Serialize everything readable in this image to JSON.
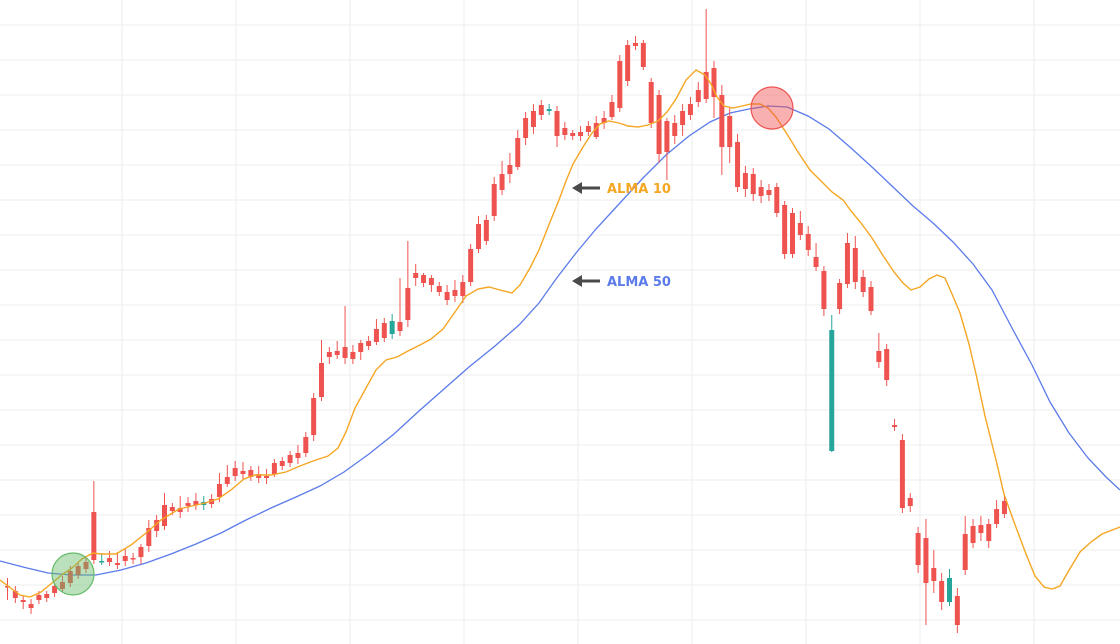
{
  "colors": {
    "up": "#26a69a",
    "down": "#ef5350",
    "alma10": "#f5a623",
    "alma50": "#5b7bea",
    "grid": "#eeeeee",
    "arrow": "#4a4a4a",
    "buy_marker": "#66bb6a",
    "sell_marker": "#ef5350"
  },
  "chart_data": {
    "type": "candlestick",
    "grid": true,
    "ylim": [
      0,
      644
    ],
    "candles": [
      [
        586,
        586,
        578,
        600
      ],
      [
        591,
        598,
        586,
        603
      ],
      [
        600,
        602,
        596,
        609
      ],
      [
        604,
        608,
        599,
        614
      ],
      [
        595,
        600,
        591,
        604
      ],
      [
        594,
        598,
        591,
        602
      ],
      [
        586,
        593,
        583,
        597
      ],
      [
        582,
        589,
        576,
        592
      ],
      [
        571,
        583,
        566,
        587
      ],
      [
        566,
        575,
        563,
        579
      ],
      [
        562,
        569,
        556,
        573
      ],
      [
        512,
        560,
        481,
        564
      ],
      [
        562,
        561,
        553,
        565
      ],
      [
        558,
        562,
        551,
        566
      ],
      [
        563,
        565,
        552,
        569
      ],
      [
        556,
        561,
        548,
        566
      ],
      [
        558,
        559,
        553,
        564
      ],
      [
        547,
        557,
        544,
        564
      ],
      [
        528,
        546,
        520,
        552
      ],
      [
        520,
        531,
        515,
        537
      ],
      [
        505,
        526,
        493,
        530
      ],
      [
        507,
        511,
        503,
        515
      ],
      [
        508,
        512,
        496,
        518
      ],
      [
        503,
        506,
        497,
        512
      ],
      [
        501,
        505,
        493,
        510
      ],
      [
        505,
        502,
        496,
        510
      ],
      [
        499,
        504,
        494,
        508
      ],
      [
        484,
        497,
        473,
        502
      ],
      [
        477,
        484,
        465,
        487
      ],
      [
        468,
        476,
        461,
        481
      ],
      [
        471,
        474,
        462,
        480
      ],
      [
        470,
        477,
        466,
        481
      ],
      [
        474,
        478,
        466,
        483
      ],
      [
        476,
        478,
        469,
        484
      ],
      [
        463,
        474,
        459,
        477
      ],
      [
        461,
        466,
        457,
        470
      ],
      [
        455,
        463,
        451,
        467
      ],
      [
        453,
        458,
        445,
        464
      ],
      [
        437,
        453,
        432,
        457
      ],
      [
        398,
        435,
        393,
        441
      ],
      [
        363,
        397,
        340,
        401
      ],
      [
        352,
        357,
        347,
        364
      ],
      [
        351,
        355,
        341,
        359
      ],
      [
        347,
        358,
        306,
        364
      ],
      [
        352,
        359,
        345,
        364
      ],
      [
        343,
        352,
        340,
        360
      ],
      [
        341,
        346,
        336,
        350
      ],
      [
        329,
        342,
        319,
        345
      ],
      [
        323,
        338,
        318,
        342
      ],
      [
        334,
        321,
        314,
        339
      ],
      [
        322,
        331,
        278,
        336
      ],
      [
        288,
        320,
        241,
        327
      ],
      [
        273,
        278,
        264,
        286
      ],
      [
        275,
        283,
        273,
        287
      ],
      [
        278,
        285,
        275,
        292
      ],
      [
        286,
        292,
        282,
        296
      ],
      [
        292,
        300,
        285,
        305
      ],
      [
        290,
        296,
        280,
        302
      ],
      [
        282,
        296,
        275,
        303
      ],
      [
        249,
        282,
        244,
        286
      ],
      [
        224,
        249,
        216,
        253
      ],
      [
        220,
        241,
        215,
        245
      ],
      [
        184,
        216,
        177,
        221
      ],
      [
        174,
        190,
        161,
        195
      ],
      [
        165,
        174,
        153,
        183
      ],
      [
        138,
        167,
        130,
        170
      ],
      [
        118,
        138,
        112,
        145
      ],
      [
        111,
        127,
        104,
        134
      ],
      [
        105,
        115,
        100,
        120
      ],
      [
        111,
        109,
        104,
        115
      ],
      [
        111,
        136,
        106,
        147
      ],
      [
        128,
        135,
        122,
        140
      ],
      [
        133,
        136,
        130,
        140
      ],
      [
        132,
        136,
        126,
        141
      ],
      [
        126,
        132,
        121,
        136
      ],
      [
        123,
        137,
        116,
        139
      ],
      [
        118,
        123,
        111,
        129
      ],
      [
        102,
        117,
        95,
        120
      ],
      [
        61,
        108,
        55,
        112
      ],
      [
        45,
        81,
        40,
        86
      ],
      [
        43,
        46,
        36,
        50
      ],
      [
        43,
        67,
        40,
        70
      ],
      [
        82,
        123,
        78,
        128
      ],
      [
        95,
        154,
        90,
        163
      ],
      [
        121,
        152,
        118,
        180
      ],
      [
        123,
        136,
        115,
        144
      ],
      [
        111,
        125,
        104,
        136
      ],
      [
        104,
        115,
        97,
        120
      ],
      [
        90,
        102,
        82,
        107
      ],
      [
        72,
        99,
        9,
        103
      ],
      [
        68,
        97,
        61,
        118
      ],
      [
        95,
        147,
        85,
        175
      ],
      [
        116,
        147,
        108,
        163
      ],
      [
        142,
        187,
        134,
        192
      ],
      [
        173,
        189,
        166,
        197
      ],
      [
        174,
        194,
        168,
        201
      ],
      [
        187,
        196,
        180,
        203
      ],
      [
        190,
        195,
        184,
        201
      ],
      [
        187,
        213,
        183,
        217
      ],
      [
        205,
        254,
        201,
        259
      ],
      [
        213,
        254,
        208,
        258
      ],
      [
        223,
        235,
        211,
        240
      ],
      [
        234,
        250,
        226,
        256
      ],
      [
        257,
        267,
        243,
        271
      ],
      [
        271,
        309,
        266,
        316
      ],
      [
        451,
        330,
        315,
        452
      ],
      [
        283,
        309,
        279,
        314
      ],
      [
        243,
        284,
        233,
        288
      ],
      [
        248,
        282,
        236,
        289
      ],
      [
        277,
        292,
        270,
        297
      ],
      [
        287,
        311,
        281,
        315
      ],
      [
        351,
        362,
        333,
        368
      ],
      [
        349,
        380,
        344,
        386
      ],
      [
        425,
        427,
        419,
        431
      ],
      [
        440,
        508,
        434,
        513
      ],
      [
        498,
        506,
        493,
        512
      ],
      [
        533,
        565,
        527,
        573
      ],
      [
        538,
        583,
        519,
        625
      ],
      [
        568,
        581,
        550,
        593
      ],
      [
        581,
        602,
        573,
        610
      ],
      [
        602,
        578,
        569,
        606
      ],
      [
        596,
        625,
        588,
        633
      ],
      [
        534,
        570,
        516,
        575
      ],
      [
        526,
        543,
        519,
        548
      ],
      [
        525,
        533,
        516,
        541
      ],
      [
        524,
        541,
        519,
        548
      ],
      [
        509,
        524,
        500,
        528
      ],
      [
        501,
        514,
        495,
        518
      ]
    ],
    "alma10": [
      [
        0,
        580
      ],
      [
        20,
        595
      ],
      [
        30,
        597
      ],
      [
        41,
        592
      ],
      [
        52,
        583
      ],
      [
        63,
        574
      ],
      [
        72,
        568
      ],
      [
        82,
        559
      ],
      [
        93,
        553
      ],
      [
        101,
        554
      ],
      [
        116,
        554
      ],
      [
        131,
        545
      ],
      [
        146,
        533
      ],
      [
        161,
        520
      ],
      [
        179,
        509
      ],
      [
        192,
        506
      ],
      [
        205,
        503
      ],
      [
        218,
        499
      ],
      [
        231,
        490
      ],
      [
        244,
        479
      ],
      [
        255,
        475
      ],
      [
        271,
        475
      ],
      [
        286,
        472
      ],
      [
        300,
        466
      ],
      [
        313,
        461
      ],
      [
        328,
        456
      ],
      [
        338,
        448
      ],
      [
        346,
        432
      ],
      [
        355,
        408
      ],
      [
        366,
        388
      ],
      [
        376,
        370
      ],
      [
        386,
        360
      ],
      [
        397,
        357
      ],
      [
        408,
        351
      ],
      [
        420,
        345
      ],
      [
        431,
        339
      ],
      [
        443,
        329
      ],
      [
        455,
        312
      ],
      [
        466,
        296
      ],
      [
        478,
        289
      ],
      [
        489,
        287
      ],
      [
        500,
        290
      ],
      [
        512,
        293
      ],
      [
        520,
        285
      ],
      [
        530,
        268
      ],
      [
        539,
        250
      ],
      [
        550,
        222
      ],
      [
        559,
        200
      ],
      [
        566,
        181
      ],
      [
        573,
        164
      ],
      [
        583,
        147
      ],
      [
        592,
        133
      ],
      [
        600,
        124
      ],
      [
        609,
        121
      ],
      [
        619,
        123
      ],
      [
        628,
        126
      ],
      [
        638,
        127
      ],
      [
        648,
        125
      ],
      [
        658,
        121
      ],
      [
        667,
        112
      ],
      [
        676,
        99
      ],
      [
        686,
        80
      ],
      [
        696,
        70
      ],
      [
        705,
        75
      ],
      [
        711,
        84
      ],
      [
        717,
        97
      ],
      [
        724,
        106
      ],
      [
        733,
        108
      ],
      [
        742,
        106
      ],
      [
        751,
        104
      ],
      [
        760,
        104
      ],
      [
        768,
        108
      ],
      [
        776,
        117
      ],
      [
        787,
        134
      ],
      [
        798,
        152
      ],
      [
        810,
        170
      ],
      [
        822,
        182
      ],
      [
        832,
        192
      ],
      [
        843,
        200
      ],
      [
        851,
        211
      ],
      [
        861,
        223
      ],
      [
        872,
        238
      ],
      [
        882,
        254
      ],
      [
        894,
        272
      ],
      [
        903,
        283
      ],
      [
        911,
        290
      ],
      [
        920,
        287
      ],
      [
        929,
        279
      ],
      [
        937,
        275
      ],
      [
        945,
        278
      ],
      [
        952,
        294
      ],
      [
        960,
        313
      ],
      [
        969,
        344
      ],
      [
        976,
        374
      ],
      [
        985,
        416
      ],
      [
        996,
        460
      ],
      [
        1004,
        494
      ],
      [
        1014,
        522
      ],
      [
        1026,
        554
      ],
      [
        1035,
        576
      ],
      [
        1044,
        587
      ],
      [
        1052,
        589
      ],
      [
        1060,
        586
      ],
      [
        1068,
        572
      ],
      [
        1080,
        552
      ],
      [
        1091,
        542
      ],
      [
        1102,
        534
      ],
      [
        1120,
        527
      ]
    ],
    "alma50": [
      [
        0,
        561
      ],
      [
        23,
        567
      ],
      [
        48,
        573
      ],
      [
        71,
        575
      ],
      [
        96,
        575
      ],
      [
        121,
        570
      ],
      [
        146,
        563
      ],
      [
        171,
        554
      ],
      [
        196,
        544
      ],
      [
        221,
        533
      ],
      [
        246,
        520
      ],
      [
        271,
        508
      ],
      [
        296,
        497
      ],
      [
        320,
        486
      ],
      [
        344,
        472
      ],
      [
        369,
        454
      ],
      [
        394,
        434
      ],
      [
        419,
        411
      ],
      [
        444,
        389
      ],
      [
        469,
        367
      ],
      [
        495,
        346
      ],
      [
        519,
        325
      ],
      [
        539,
        303
      ],
      [
        556,
        279
      ],
      [
        576,
        253
      ],
      [
        596,
        229
      ],
      [
        619,
        204
      ],
      [
        643,
        178
      ],
      [
        666,
        155
      ],
      [
        689,
        136
      ],
      [
        710,
        122
      ],
      [
        730,
        113
      ],
      [
        749,
        109
      ],
      [
        768,
        106
      ],
      [
        787,
        107
      ],
      [
        808,
        116
      ],
      [
        829,
        129
      ],
      [
        851,
        148
      ],
      [
        873,
        168
      ],
      [
        893,
        187
      ],
      [
        913,
        206
      ],
      [
        933,
        223
      ],
      [
        953,
        242
      ],
      [
        973,
        264
      ],
      [
        992,
        290
      ],
      [
        1012,
        328
      ],
      [
        1032,
        365
      ],
      [
        1050,
        402
      ],
      [
        1069,
        433
      ],
      [
        1088,
        458
      ],
      [
        1106,
        477
      ],
      [
        1120,
        490
      ]
    ],
    "markers": [
      {
        "kind": "buy",
        "cx": 73,
        "cy": 574,
        "r": 21
      },
      {
        "kind": "sell",
        "cx": 772,
        "cy": 108,
        "r": 21
      }
    ],
    "annotations": [
      {
        "text": "ALMA 10",
        "series": "alma10"
      },
      {
        "text": "ALMA 50",
        "series": "alma50"
      }
    ]
  }
}
